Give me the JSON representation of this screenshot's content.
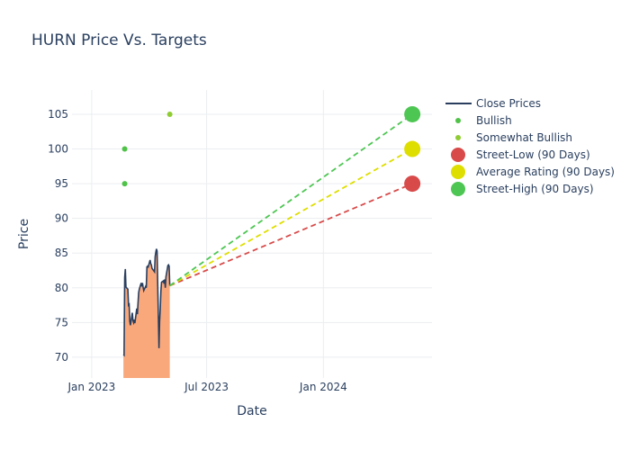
{
  "chart_data": {
    "type": "line",
    "title": "HURN Price Vs. Targets",
    "xlabel": "Date",
    "ylabel": "Price",
    "ylim": [
      67,
      108.5
    ],
    "xlim": [
      "2022-12-01",
      "2024-06-20"
    ],
    "x_ticks": [
      {
        "date": "2023-01-01",
        "label": "Jan 2023"
      },
      {
        "date": "2023-07-01",
        "label": "Jul 2023"
      },
      {
        "date": "2024-01-01",
        "label": "Jan 2024"
      }
    ],
    "y_ticks": [
      70,
      75,
      80,
      85,
      90,
      95,
      100,
      105
    ],
    "grid": true,
    "legend_position": "top-right",
    "colors": {
      "close_line": "#2a3f5f",
      "close_fill": "#f9a87c",
      "bullish": "#4fc248",
      "somewhat_bullish": "#8fcc32",
      "street_low": "#d84a4a",
      "average": "#dede00",
      "street_high": "#4ec653",
      "grid": "#ebedf0",
      "text": "#2a3f5f"
    },
    "series": [
      {
        "name": "Close Prices",
        "kind": "area-line",
        "points": [
          [
            "2023-02-20",
            70.4
          ],
          [
            "2023-02-21",
            70.3
          ],
          [
            "2023-02-22",
            81.5
          ],
          [
            "2023-02-23",
            82.7
          ],
          [
            "2023-02-24",
            80.1
          ],
          [
            "2023-02-27",
            79.8
          ],
          [
            "2023-02-28",
            77.5
          ],
          [
            "2023-03-01",
            77.6
          ],
          [
            "2023-03-02",
            75.2
          ],
          [
            "2023-03-03",
            74.6
          ],
          [
            "2023-03-06",
            76.4
          ],
          [
            "2023-03-07",
            75.3
          ],
          [
            "2023-03-08",
            75.0
          ],
          [
            "2023-03-09",
            75.4
          ],
          [
            "2023-03-10",
            74.9
          ],
          [
            "2023-03-13",
            77.0
          ],
          [
            "2023-03-14",
            76.2
          ],
          [
            "2023-03-15",
            77.8
          ],
          [
            "2023-03-16",
            79.3
          ],
          [
            "2023-03-17",
            79.8
          ],
          [
            "2023-03-20",
            80.7
          ],
          [
            "2023-03-21",
            80.2
          ],
          [
            "2023-03-22",
            80.7
          ],
          [
            "2023-03-23",
            80.1
          ],
          [
            "2023-03-24",
            79.6
          ],
          [
            "2023-03-27",
            80.2
          ],
          [
            "2023-03-28",
            80.0
          ],
          [
            "2023-03-29",
            83.0
          ],
          [
            "2023-03-30",
            83.1
          ],
          [
            "2023-03-31",
            83.0
          ],
          [
            "2023-04-03",
            84.0
          ],
          [
            "2023-04-04",
            83.5
          ],
          [
            "2023-04-05",
            83.3
          ],
          [
            "2023-04-06",
            82.8
          ],
          [
            "2023-04-10",
            82.3
          ],
          [
            "2023-04-11",
            84.5
          ],
          [
            "2023-04-12",
            85.1
          ],
          [
            "2023-04-13",
            85.6
          ],
          [
            "2023-04-14",
            85.3
          ],
          [
            "2023-04-17",
            71.3
          ],
          [
            "2023-04-18",
            75.2
          ],
          [
            "2023-04-19",
            77.0
          ],
          [
            "2023-04-20",
            79.5
          ],
          [
            "2023-04-21",
            80.8
          ],
          [
            "2023-04-24",
            81.0
          ],
          [
            "2023-04-25",
            80.6
          ],
          [
            "2023-04-26",
            81.2
          ],
          [
            "2023-04-27",
            80.0
          ],
          [
            "2023-04-28",
            81.6
          ],
          [
            "2023-05-01",
            83.2
          ],
          [
            "2023-05-02",
            83.3
          ],
          [
            "2023-05-03",
            83.1
          ],
          [
            "2023-05-04",
            80.3
          ]
        ]
      },
      {
        "name": "Bullish",
        "kind": "scatter",
        "points": [
          [
            "2023-02-22",
            100
          ],
          [
            "2023-02-22",
            95
          ]
        ]
      },
      {
        "name": "Somewhat Bullish",
        "kind": "scatter",
        "points": [
          [
            "2023-05-04",
            105
          ]
        ]
      },
      {
        "name": "Street-Low (90 Days)",
        "kind": "target",
        "start": [
          "2023-05-04",
          80.3
        ],
        "end": [
          "2024-05-20",
          95
        ]
      },
      {
        "name": "Average Rating (90 Days)",
        "kind": "target",
        "start": [
          "2023-05-04",
          80.3
        ],
        "end": [
          "2024-05-20",
          100
        ]
      },
      {
        "name": "Street-High (90 Days)",
        "kind": "target",
        "start": [
          "2023-05-04",
          80.3
        ],
        "end": [
          "2024-05-20",
          105
        ]
      }
    ]
  }
}
